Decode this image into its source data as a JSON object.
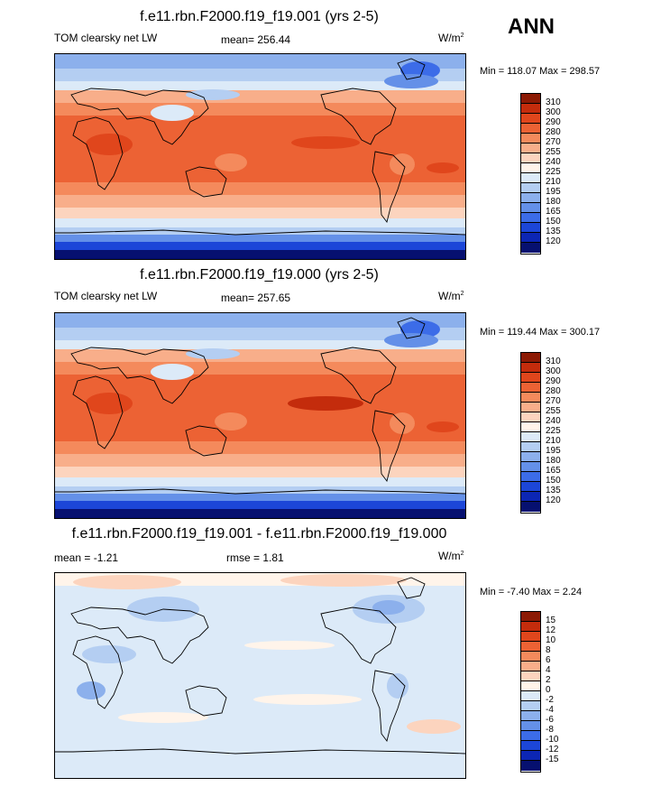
{
  "season": "ANN",
  "panels": [
    {
      "title": "f.e11.rbn.F2000.f19_f19.001 (yrs 2-5)",
      "left_label": "TOM clearsky net LW",
      "center_label": "mean= 256.44",
      "units": "W/m",
      "units_sup": "2",
      "minmax": "Min = 118.07 Max = 298.57"
    },
    {
      "title": "f.e11.rbn.F2000.f19_f19.000 (yrs 2-5)",
      "left_label": "TOM clearsky net LW",
      "center_label": "mean= 257.65",
      "units": "W/m",
      "units_sup": "2",
      "minmax": "Min = 119.44 Max = 300.17"
    },
    {
      "title": "f.e11.rbn.F2000.f19_f19.001 - f.e11.rbn.F2000.f19_f19.000",
      "left_label": "mean =  -1.21",
      "center_label": "rmse =  1.81",
      "units": "W/m",
      "units_sup": "2",
      "minmax": "Min =  -7.40 Max =   2.24"
    }
  ],
  "chart_data": [
    {
      "type": "heatmap",
      "projection": "global cylindrical equidistant map, Pacific-centred",
      "title": "f.e11.rbn.F2000.f19_f19.001 (yrs 2-5)",
      "variable": "TOM clearsky net LW",
      "mean": 256.44,
      "units": "W/m2",
      "min": 118.07,
      "max": 298.57,
      "colorbar_levels": [
        "310",
        "300",
        "290",
        "280",
        "270",
        "255",
        "240",
        "225",
        "210",
        "195",
        "180",
        "165",
        "150",
        "135",
        "120"
      ],
      "colorbar_colors": [
        "#8c1a04",
        "#c42c0c",
        "#e0461c",
        "#ec6234",
        "#f48a5c",
        "#f8ae8a",
        "#fcd4be",
        "#fff4ea",
        "#dceaf8",
        "#b4cef2",
        "#8cb0ec",
        "#6490e8",
        "#3c6ce8",
        "#1c46d8",
        "#0c26b4",
        "#061070"
      ]
    },
    {
      "type": "heatmap",
      "projection": "global cylindrical equidistant map, Pacific-centred",
      "title": "f.e11.rbn.F2000.f19_f19.000 (yrs 2-5)",
      "variable": "TOM clearsky net LW",
      "mean": 257.65,
      "units": "W/m2",
      "min": 119.44,
      "max": 300.17,
      "colorbar_levels": [
        "310",
        "300",
        "290",
        "280",
        "270",
        "255",
        "240",
        "225",
        "210",
        "195",
        "180",
        "165",
        "150",
        "135",
        "120"
      ],
      "colorbar_colors": [
        "#8c1a04",
        "#c42c0c",
        "#e0461c",
        "#ec6234",
        "#f48a5c",
        "#f8ae8a",
        "#fcd4be",
        "#fff4ea",
        "#dceaf8",
        "#b4cef2",
        "#8cb0ec",
        "#6490e8",
        "#3c6ce8",
        "#1c46d8",
        "#0c26b4",
        "#061070"
      ]
    },
    {
      "type": "heatmap",
      "projection": "global cylindrical equidistant map, Pacific-centred",
      "title": "f.e11.rbn.F2000.f19_f19.001 - f.e11.rbn.F2000.f19_f19.000",
      "variable": "difference",
      "mean": -1.21,
      "rmse": 1.81,
      "units": "W/m2",
      "min": -7.4,
      "max": 2.24,
      "colorbar_levels": [
        "15",
        "12",
        "10",
        "8",
        "6",
        "4",
        "2",
        "0",
        "-2",
        "-4",
        "-6",
        "-8",
        "-10",
        "-12",
        "-15"
      ],
      "colorbar_colors": [
        "#8c1a04",
        "#c42c0c",
        "#e0461c",
        "#ec6234",
        "#f48a5c",
        "#f8ae8a",
        "#fcd4be",
        "#fff4ea",
        "#dceaf8",
        "#b4cef2",
        "#8cb0ec",
        "#6490e8",
        "#3c6ce8",
        "#1c46d8",
        "#0c26b4",
        "#061070"
      ]
    }
  ]
}
